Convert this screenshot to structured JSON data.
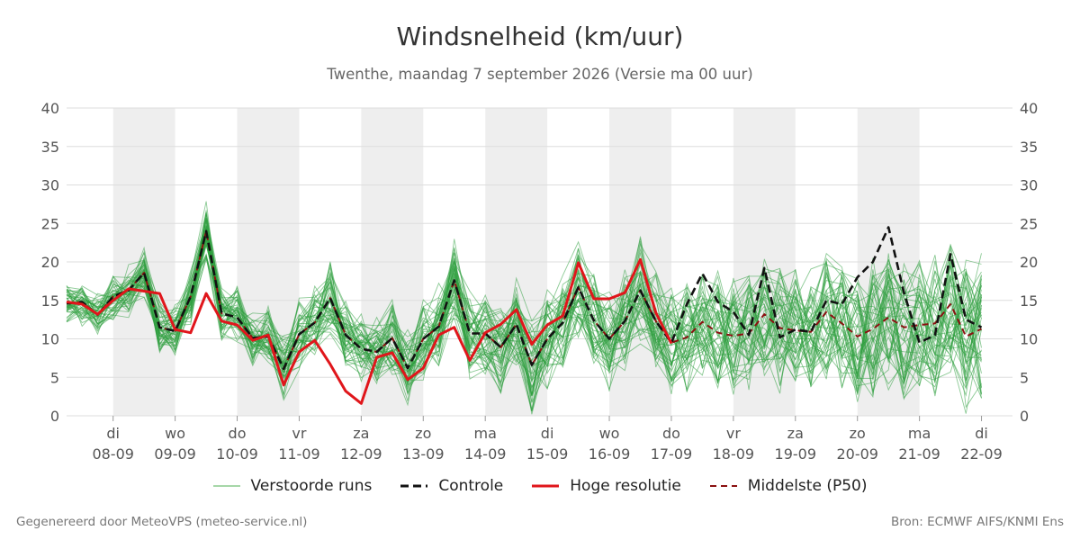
{
  "header": {
    "title": "Windsnelheid (km/uur)",
    "subtitle": "Twenthe, maandag  7 september 2026 (Versie ma 00 uur)"
  },
  "footer": {
    "left": "Gegenereerd door MeteoVPS (meteo-service.nl)",
    "right": "Bron: ECMWF AIFS/KNMI Ens"
  },
  "legend": [
    {
      "label": "Verstoorde runs",
      "color": "#4caf50",
      "style": "thin"
    },
    {
      "label": "Controle",
      "color": "#111111",
      "style": "dashed"
    },
    {
      "label": "Hoge resolutie",
      "color": "#e0161b",
      "style": "solid"
    },
    {
      "label": "Middelste (P50)",
      "color": "#8b1010",
      "style": "dashed"
    }
  ],
  "colors": {
    "ensemble": "#2e9e3e",
    "control": "#111111",
    "highres": "#e0161b",
    "median": "#8b1010",
    "shade": "#eeeeee",
    "grid": "#dddddd"
  },
  "chart_data": {
    "type": "line",
    "title": "Windsnelheid (km/uur)",
    "ylim": [
      0,
      40
    ],
    "yticks": [
      0,
      5,
      10,
      15,
      20,
      25,
      30,
      35,
      40
    ],
    "xlim": [
      -0.75,
      14.5
    ],
    "grid": true,
    "legend_position": "bottom",
    "x_ticks": [
      {
        "day": "di",
        "date": "08-09",
        "x": 0
      },
      {
        "day": "wo",
        "date": "09-09",
        "x": 1
      },
      {
        "day": "do",
        "date": "10-09",
        "x": 2
      },
      {
        "day": "vr",
        "date": "11-09",
        "x": 3
      },
      {
        "day": "za",
        "date": "12-09",
        "x": 4
      },
      {
        "day": "zo",
        "date": "13-09",
        "x": 5
      },
      {
        "day": "ma",
        "date": "14-09",
        "x": 6
      },
      {
        "day": "di",
        "date": "15-09",
        "x": 7
      },
      {
        "day": "wo",
        "date": "16-09",
        "x": 8
      },
      {
        "day": "do",
        "date": "17-09",
        "x": 9
      },
      {
        "day": "vr",
        "date": "18-09",
        "x": 10
      },
      {
        "day": "za",
        "date": "19-09",
        "x": 11
      },
      {
        "day": "zo",
        "date": "20-09",
        "x": 12
      },
      {
        "day": "ma",
        "date": "21-09",
        "x": 13
      },
      {
        "day": "di",
        "date": "22-09",
        "x": 14
      }
    ],
    "shaded_days": [
      [
        0,
        1
      ],
      [
        2,
        3
      ],
      [
        4,
        5
      ],
      [
        6,
        7
      ],
      [
        8,
        9
      ],
      [
        10,
        11
      ],
      [
        12,
        13
      ]
    ],
    "series": [
      {
        "role": "highres",
        "x": [
          -0.75,
          -0.5,
          -0.25,
          0,
          0.25,
          0.5,
          0.75,
          1,
          1.25,
          1.5,
          1.75,
          2,
          2.25,
          2.5,
          2.75,
          3,
          3.25,
          3.5,
          3.75,
          4,
          4.25,
          4.5,
          4.75,
          5,
          5.25,
          5.5,
          5.75,
          6,
          6.25,
          6.5,
          6.75,
          7,
          7.25,
          7.5,
          7.75,
          8,
          8.25,
          8.5,
          8.75,
          9
        ],
        "values": [
          14.8,
          14.5,
          13.2,
          15.0,
          16.5,
          16.2,
          15.9,
          11.2,
          10.8,
          15.9,
          12.3,
          11.8,
          9.8,
          10.5,
          4.0,
          8.3,
          9.8,
          6.7,
          3.2,
          1.6,
          7.6,
          8.2,
          4.7,
          6.2,
          10.5,
          11.5,
          7.2,
          10.8,
          11.9,
          13.8,
          9.3,
          11.8,
          13.0,
          19.9,
          15.2,
          15.2,
          16.0,
          20.3,
          13.4,
          9.4
        ]
      },
      {
        "role": "median",
        "x": [
          -0.75,
          -0.5,
          -0.25,
          0,
          0.25,
          0.5,
          0.75,
          1,
          1.25,
          1.5,
          1.75,
          2,
          2.25,
          2.5,
          2.75,
          3,
          3.25,
          3.5,
          3.75,
          4,
          4.25,
          4.5,
          4.75,
          5,
          5.25,
          5.5,
          5.75,
          6,
          6.25,
          6.5,
          6.75,
          7,
          7.25,
          7.5,
          7.75,
          8,
          8.25,
          8.5,
          8.75,
          9,
          9.25,
          9.5,
          9.75,
          10,
          10.25,
          10.5,
          10.75,
          11,
          11.25,
          11.5,
          11.75,
          12,
          12.25,
          12.5,
          12.75,
          13,
          13.25,
          13.5,
          13.75,
          14
        ],
        "values": [
          14.6,
          14.8,
          13.1,
          15.5,
          16.3,
          18.6,
          11.5,
          11.0,
          15.5,
          24.0,
          13.3,
          12.8,
          10.1,
          10.3,
          6.1,
          10.6,
          12.1,
          15.3,
          10.5,
          8.7,
          8.3,
          10.1,
          6.2,
          10.0,
          11.6,
          17.6,
          10.7,
          10.7,
          8.9,
          11.9,
          6.6,
          10.0,
          12.1,
          16.7,
          12.4,
          10.0,
          12.3,
          16.3,
          12.3,
          9.5,
          10.2,
          12.2,
          10.8,
          10.4,
          10.7,
          13.2,
          11.4,
          11.1,
          10.9,
          13.5,
          12.0,
          10.3,
          11.3,
          12.8,
          11.5,
          11.8,
          12.0,
          14.5,
          10.3,
          11.3
        ]
      },
      {
        "role": "control",
        "x": [
          -0.75,
          -0.5,
          -0.25,
          0,
          0.25,
          0.5,
          0.75,
          1,
          1.25,
          1.5,
          1.75,
          2,
          2.25,
          2.5,
          2.75,
          3,
          3.25,
          3.5,
          3.75,
          4,
          4.25,
          4.5,
          4.75,
          5,
          5.25,
          5.5,
          5.75,
          6,
          6.25,
          6.5,
          6.75,
          7,
          7.25,
          7.5,
          7.75,
          8,
          8.25,
          8.5,
          8.75,
          9,
          9.25,
          9.5,
          9.75,
          10,
          10.25,
          10.5,
          10.75,
          11,
          11.25,
          11.5,
          11.75,
          12,
          12.25,
          12.5,
          12.75,
          13,
          13.25,
          13.5,
          13.75,
          14
        ],
        "values": [
          14.6,
          14.8,
          13.1,
          15.5,
          16.3,
          18.6,
          11.5,
          11.0,
          15.5,
          24.0,
          13.3,
          12.8,
          10.1,
          10.3,
          6.1,
          10.6,
          12.1,
          15.3,
          10.5,
          8.7,
          8.3,
          10.1,
          6.2,
          10.0,
          11.6,
          17.6,
          10.7,
          10.7,
          8.9,
          11.9,
          6.6,
          10.0,
          12.1,
          16.7,
          12.4,
          10.0,
          12.3,
          16.3,
          12.3,
          9.5,
          14.5,
          18.5,
          14.8,
          13.5,
          10.5,
          19.2,
          10.2,
          11.2,
          10.9,
          15.0,
          14.5,
          18.0,
          20.0,
          24.5,
          16.0,
          9.5,
          10.5,
          21.0,
          12.5,
          11.5
        ]
      }
    ],
    "ensemble": {
      "name": "Verstoorde runs",
      "member_count": 50,
      "x_start": -0.75,
      "x_step": 0.25
    }
  }
}
